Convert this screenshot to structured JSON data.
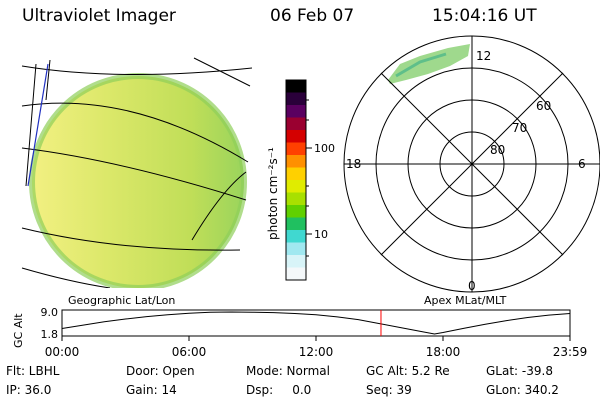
{
  "header": {
    "instrument": "Ultraviolet Imager",
    "date": "06 Feb 07",
    "time": "15:04:16 UT"
  },
  "colors": {
    "disk": "#cde35a",
    "limb": "#8fce5a",
    "aurora": "#9fd98d",
    "marker": "#ff0000"
  },
  "images": {
    "left_label": "Geographic Lat/Lon",
    "right_label": "Apex MLat/MLT"
  },
  "colorbar": {
    "label": "photon cm⁻²s⁻¹",
    "ticks": [
      "100",
      "10"
    ],
    "colors": [
      "#000000",
      "#2a003a",
      "#5a0060",
      "#9a0030",
      "#d40000",
      "#ff4000",
      "#ff9000",
      "#ffd000",
      "#e0ec00",
      "#a8e000",
      "#60d000",
      "#20c060",
      "#40d8d0",
      "#a0e8f0",
      "#d8f4f8",
      "#f4f8fa"
    ]
  },
  "polar": {
    "mlt_labels": [
      "12",
      "18",
      "6",
      "0"
    ],
    "lat_labels": [
      "60",
      "70",
      "80"
    ]
  },
  "chart_data": {
    "type": "line",
    "ylabel": "GC Alt",
    "y_ticks": [
      "9.0",
      "1.8"
    ],
    "ylim": [
      1.8,
      9.0
    ],
    "x_ticks": [
      "00:00",
      "06:00",
      "12:00",
      "18:00",
      "23:59"
    ],
    "current_time_hours": 15.07,
    "series": [
      {
        "x": [
          0,
          1,
          2,
          3,
          4,
          5,
          6,
          7,
          8,
          9,
          10,
          11,
          12,
          13,
          14,
          15,
          16,
          17,
          17.6,
          18,
          19,
          20,
          21,
          22,
          23,
          24
        ],
        "y": [
          3.6,
          4.7,
          5.8,
          6.7,
          7.5,
          8.1,
          8.6,
          8.9,
          9.0,
          8.95,
          8.8,
          8.5,
          8.1,
          7.4,
          6.5,
          5.2,
          3.9,
          2.6,
          1.8,
          2.3,
          3.7,
          5.0,
          6.2,
          7.2,
          8.0,
          8.5
        ]
      }
    ]
  },
  "info": {
    "rows": [
      [
        "Flt: LBHL",
        "Door: Open",
        "Mode: Normal",
        "GC Alt: 5.2 Re",
        "GLat: -39.8"
      ],
      [
        "IP: 36.0",
        "Gain: 14",
        "Dsp:     0.0",
        "Seq: 39",
        "GLon: 340.2"
      ]
    ]
  }
}
